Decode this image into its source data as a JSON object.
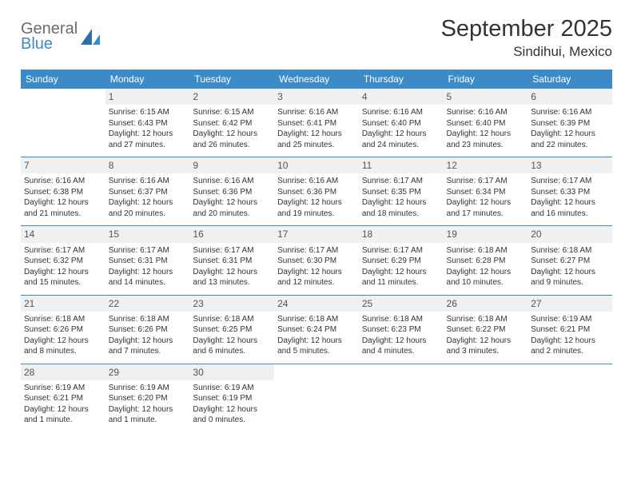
{
  "brand": {
    "line1": "General",
    "line2": "Blue"
  },
  "title": "September 2025",
  "location": "Sindihui, Mexico",
  "colors": {
    "accent": "#3b8bc9",
    "header_bg": "#3b8bc9",
    "daynum_bg": "#eef0f1",
    "text": "#333333",
    "logo_gray": "#6b6b6b",
    "background": "#ffffff"
  },
  "dow": [
    "Sunday",
    "Monday",
    "Tuesday",
    "Wednesday",
    "Thursday",
    "Friday",
    "Saturday"
  ],
  "weeks": [
    [
      {
        "n": "",
        "empty": true
      },
      {
        "n": "1",
        "sunrise": "Sunrise: 6:15 AM",
        "sunset": "Sunset: 6:43 PM",
        "d1": "Daylight: 12 hours",
        "d2": "and 27 minutes."
      },
      {
        "n": "2",
        "sunrise": "Sunrise: 6:15 AM",
        "sunset": "Sunset: 6:42 PM",
        "d1": "Daylight: 12 hours",
        "d2": "and 26 minutes."
      },
      {
        "n": "3",
        "sunrise": "Sunrise: 6:16 AM",
        "sunset": "Sunset: 6:41 PM",
        "d1": "Daylight: 12 hours",
        "d2": "and 25 minutes."
      },
      {
        "n": "4",
        "sunrise": "Sunrise: 6:16 AM",
        "sunset": "Sunset: 6:40 PM",
        "d1": "Daylight: 12 hours",
        "d2": "and 24 minutes."
      },
      {
        "n": "5",
        "sunrise": "Sunrise: 6:16 AM",
        "sunset": "Sunset: 6:40 PM",
        "d1": "Daylight: 12 hours",
        "d2": "and 23 minutes."
      },
      {
        "n": "6",
        "sunrise": "Sunrise: 6:16 AM",
        "sunset": "Sunset: 6:39 PM",
        "d1": "Daylight: 12 hours",
        "d2": "and 22 minutes."
      }
    ],
    [
      {
        "n": "7",
        "sunrise": "Sunrise: 6:16 AM",
        "sunset": "Sunset: 6:38 PM",
        "d1": "Daylight: 12 hours",
        "d2": "and 21 minutes."
      },
      {
        "n": "8",
        "sunrise": "Sunrise: 6:16 AM",
        "sunset": "Sunset: 6:37 PM",
        "d1": "Daylight: 12 hours",
        "d2": "and 20 minutes."
      },
      {
        "n": "9",
        "sunrise": "Sunrise: 6:16 AM",
        "sunset": "Sunset: 6:36 PM",
        "d1": "Daylight: 12 hours",
        "d2": "and 20 minutes."
      },
      {
        "n": "10",
        "sunrise": "Sunrise: 6:16 AM",
        "sunset": "Sunset: 6:36 PM",
        "d1": "Daylight: 12 hours",
        "d2": "and 19 minutes."
      },
      {
        "n": "11",
        "sunrise": "Sunrise: 6:17 AM",
        "sunset": "Sunset: 6:35 PM",
        "d1": "Daylight: 12 hours",
        "d2": "and 18 minutes."
      },
      {
        "n": "12",
        "sunrise": "Sunrise: 6:17 AM",
        "sunset": "Sunset: 6:34 PM",
        "d1": "Daylight: 12 hours",
        "d2": "and 17 minutes."
      },
      {
        "n": "13",
        "sunrise": "Sunrise: 6:17 AM",
        "sunset": "Sunset: 6:33 PM",
        "d1": "Daylight: 12 hours",
        "d2": "and 16 minutes."
      }
    ],
    [
      {
        "n": "14",
        "sunrise": "Sunrise: 6:17 AM",
        "sunset": "Sunset: 6:32 PM",
        "d1": "Daylight: 12 hours",
        "d2": "and 15 minutes."
      },
      {
        "n": "15",
        "sunrise": "Sunrise: 6:17 AM",
        "sunset": "Sunset: 6:31 PM",
        "d1": "Daylight: 12 hours",
        "d2": "and 14 minutes."
      },
      {
        "n": "16",
        "sunrise": "Sunrise: 6:17 AM",
        "sunset": "Sunset: 6:31 PM",
        "d1": "Daylight: 12 hours",
        "d2": "and 13 minutes."
      },
      {
        "n": "17",
        "sunrise": "Sunrise: 6:17 AM",
        "sunset": "Sunset: 6:30 PM",
        "d1": "Daylight: 12 hours",
        "d2": "and 12 minutes."
      },
      {
        "n": "18",
        "sunrise": "Sunrise: 6:17 AM",
        "sunset": "Sunset: 6:29 PM",
        "d1": "Daylight: 12 hours",
        "d2": "and 11 minutes."
      },
      {
        "n": "19",
        "sunrise": "Sunrise: 6:18 AM",
        "sunset": "Sunset: 6:28 PM",
        "d1": "Daylight: 12 hours",
        "d2": "and 10 minutes."
      },
      {
        "n": "20",
        "sunrise": "Sunrise: 6:18 AM",
        "sunset": "Sunset: 6:27 PM",
        "d1": "Daylight: 12 hours",
        "d2": "and 9 minutes."
      }
    ],
    [
      {
        "n": "21",
        "sunrise": "Sunrise: 6:18 AM",
        "sunset": "Sunset: 6:26 PM",
        "d1": "Daylight: 12 hours",
        "d2": "and 8 minutes."
      },
      {
        "n": "22",
        "sunrise": "Sunrise: 6:18 AM",
        "sunset": "Sunset: 6:26 PM",
        "d1": "Daylight: 12 hours",
        "d2": "and 7 minutes."
      },
      {
        "n": "23",
        "sunrise": "Sunrise: 6:18 AM",
        "sunset": "Sunset: 6:25 PM",
        "d1": "Daylight: 12 hours",
        "d2": "and 6 minutes."
      },
      {
        "n": "24",
        "sunrise": "Sunrise: 6:18 AM",
        "sunset": "Sunset: 6:24 PM",
        "d1": "Daylight: 12 hours",
        "d2": "and 5 minutes."
      },
      {
        "n": "25",
        "sunrise": "Sunrise: 6:18 AM",
        "sunset": "Sunset: 6:23 PM",
        "d1": "Daylight: 12 hours",
        "d2": "and 4 minutes."
      },
      {
        "n": "26",
        "sunrise": "Sunrise: 6:18 AM",
        "sunset": "Sunset: 6:22 PM",
        "d1": "Daylight: 12 hours",
        "d2": "and 3 minutes."
      },
      {
        "n": "27",
        "sunrise": "Sunrise: 6:19 AM",
        "sunset": "Sunset: 6:21 PM",
        "d1": "Daylight: 12 hours",
        "d2": "and 2 minutes."
      }
    ],
    [
      {
        "n": "28",
        "sunrise": "Sunrise: 6:19 AM",
        "sunset": "Sunset: 6:21 PM",
        "d1": "Daylight: 12 hours",
        "d2": "and 1 minute."
      },
      {
        "n": "29",
        "sunrise": "Sunrise: 6:19 AM",
        "sunset": "Sunset: 6:20 PM",
        "d1": "Daylight: 12 hours",
        "d2": "and 1 minute."
      },
      {
        "n": "30",
        "sunrise": "Sunrise: 6:19 AM",
        "sunset": "Sunset: 6:19 PM",
        "d1": "Daylight: 12 hours",
        "d2": "and 0 minutes."
      },
      {
        "n": "",
        "empty": true
      },
      {
        "n": "",
        "empty": true
      },
      {
        "n": "",
        "empty": true
      },
      {
        "n": "",
        "empty": true
      }
    ]
  ]
}
